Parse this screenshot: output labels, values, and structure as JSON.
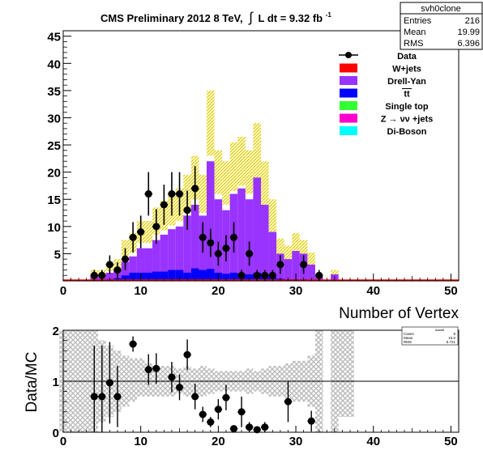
{
  "chart_data": [
    {
      "type": "bar",
      "title": "CMS Preliminary 2012 8 TeV,",
      "title_lumi": "L dt = 9.32 fb",
      "title_lumi_sup": "-1",
      "title_integral": "∫",
      "xlabel": "Number of Vertex",
      "ylabel": "",
      "xlim": [
        0,
        51
      ],
      "ylim": [
        0,
        46
      ],
      "x_ticks": [
        0,
        10,
        20,
        30,
        40,
        50
      ],
      "y_ticks": [
        5,
        10,
        15,
        20,
        25,
        30,
        35,
        40,
        45
      ],
      "stats_box": {
        "name": "svh0clone",
        "rows": [
          {
            "label": "Entries",
            "value": "216"
          },
          {
            "label": "Mean",
            "value": "19.99"
          },
          {
            "label": "RMS",
            "value": "6.396"
          }
        ]
      },
      "legend_position": "top-right",
      "legend": [
        {
          "label": "Data",
          "color": "#000000",
          "style": "marker"
        },
        {
          "label": "W+jets",
          "color": "#ff0000",
          "style": "box"
        },
        {
          "label": "Drell-Yan",
          "color": "#9933ff",
          "style": "box"
        },
        {
          "label": "tt",
          "color": "#0000ff",
          "style": "box",
          "overline": true
        },
        {
          "label": "Single top",
          "color": "#33ff33",
          "style": "box"
        },
        {
          "label": "Z → νν +jets",
          "color": "#ff00cc",
          "style": "box"
        },
        {
          "label": "Di-Boson",
          "color": "#00ffff",
          "style": "box"
        }
      ],
      "bins_x": [
        4,
        5,
        6,
        7,
        8,
        9,
        10,
        11,
        12,
        13,
        14,
        15,
        16,
        17,
        18,
        19,
        20,
        21,
        22,
        23,
        24,
        25,
        26,
        27,
        28,
        29,
        30,
        31,
        32,
        33,
        35
      ],
      "mc_total": [
        1.5,
        1.5,
        2.5,
        3,
        6,
        7,
        9,
        9,
        11,
        12,
        13,
        14,
        16,
        19,
        16,
        29,
        20,
        18,
        21,
        22,
        20,
        24,
        18,
        12,
        6,
        5,
        7,
        6,
        4,
        1,
        1.5
      ],
      "mc_drell_yan": [
        1,
        1,
        1.5,
        2,
        3.5,
        4.5,
        6,
        6,
        7.5,
        8.5,
        9.5,
        10,
        12,
        14,
        12,
        22,
        15,
        13,
        16,
        17,
        15,
        19,
        14,
        9,
        5,
        4,
        5.5,
        5,
        3,
        0.8,
        1.2
      ],
      "mc_ttbar": [
        0,
        0,
        0.3,
        0.5,
        1,
        1.5,
        1.5,
        1.5,
        1.7,
        1.7,
        2,
        2,
        1.5,
        2.3,
        2,
        2.2,
        1.5,
        1.3,
        1.5,
        1.3,
        1.2,
        1.5,
        1.2,
        0.8,
        0.4,
        0.3,
        0.3,
        0.3,
        0.2,
        0.1,
        0
      ],
      "mc_uncert": [
        0.5,
        0.5,
        0.7,
        1,
        1.5,
        1.8,
        2,
        2,
        2.5,
        2.7,
        2.8,
        3,
        3.5,
        4,
        3.5,
        6,
        4,
        4,
        4.5,
        4.5,
        4,
        5,
        4,
        3,
        1.8,
        1.5,
        1.8,
        1.5,
        1.2,
        0.3,
        0.5
      ],
      "data": [
        {
          "x": 4,
          "y": 1,
          "err": 1
        },
        {
          "x": 5,
          "y": 1,
          "err": 1
        },
        {
          "x": 6,
          "y": 3,
          "err": 1.7
        },
        {
          "x": 7,
          "y": 2,
          "err": 1.4
        },
        {
          "x": 8,
          "y": 4,
          "err": 2
        },
        {
          "x": 9,
          "y": 8,
          "err": 2.8
        },
        {
          "x": 10,
          "y": 9,
          "err": 3
        },
        {
          "x": 11,
          "y": 16,
          "err": 4
        },
        {
          "x": 12,
          "y": 10,
          "err": 3.2
        },
        {
          "x": 13,
          "y": 14,
          "err": 3.7
        },
        {
          "x": 14,
          "y": 16,
          "err": 4
        },
        {
          "x": 15,
          "y": 16,
          "err": 4
        },
        {
          "x": 16,
          "y": 13,
          "err": 3.6
        },
        {
          "x": 17,
          "y": 17,
          "err": 4.1
        },
        {
          "x": 18,
          "y": 8,
          "err": 2.8
        },
        {
          "x": 19,
          "y": 7,
          "err": 2.6
        },
        {
          "x": 20,
          "y": 5,
          "err": 2.2
        },
        {
          "x": 21,
          "y": 6,
          "err": 2.4
        },
        {
          "x": 22,
          "y": 8,
          "err": 2.8
        },
        {
          "x": 23,
          "y": 1,
          "err": 1
        },
        {
          "x": 24,
          "y": 5,
          "err": 2.2
        },
        {
          "x": 25,
          "y": 1,
          "err": 1
        },
        {
          "x": 26,
          "y": 1,
          "err": 1
        },
        {
          "x": 27,
          "y": 1,
          "err": 1
        },
        {
          "x": 28,
          "y": 3,
          "err": 1.7
        },
        {
          "x": 31,
          "y": 3,
          "err": 1.7
        },
        {
          "x": 33,
          "y": 1,
          "err": 1
        }
      ]
    },
    {
      "type": "scatter",
      "title": "",
      "xlabel": "",
      "ylabel": "Data/MC",
      "xlim": [
        0,
        51
      ],
      "ylim": [
        0,
        2
      ],
      "x_ticks": [
        0,
        10,
        20,
        30,
        40,
        50
      ],
      "y_ticks": [
        0,
        1,
        2
      ],
      "reference_line": 1,
      "stats_box": {
        "name": "dataM",
        "rows": [
          {
            "label": "Cases",
            "value": "8"
          },
          {
            "label": "Mean",
            "value": "10.0"
          },
          {
            "label": "RMS",
            "value": "5.721"
          }
        ]
      },
      "band_x": [
        0,
        1,
        2,
        3,
        4,
        5,
        6,
        7,
        8,
        9,
        10,
        11,
        12,
        13,
        14,
        15,
        16,
        17,
        18,
        19,
        20,
        21,
        22,
        23,
        24,
        25,
        26,
        27,
        28,
        29,
        30,
        31,
        32,
        33,
        35,
        36,
        37
      ],
      "band_low": [
        0,
        0,
        0,
        0,
        0,
        0.2,
        0.3,
        0.4,
        0.5,
        0.6,
        0.7,
        0.7,
        0.7,
        0.7,
        0.7,
        0.75,
        0.7,
        0.75,
        0.7,
        0.75,
        0.8,
        0.8,
        0.8,
        0.8,
        0.75,
        0.8,
        0.75,
        0.7,
        0.7,
        0.65,
        0.6,
        0.6,
        0.5,
        0,
        0,
        0.3,
        0.3
      ],
      "band_high": [
        2,
        2,
        2,
        2,
        2,
        1.8,
        1.7,
        1.6,
        1.5,
        1.45,
        1.45,
        1.35,
        1.3,
        1.3,
        1.3,
        1.25,
        1.3,
        1.25,
        1.3,
        1.25,
        1.2,
        1.2,
        1.2,
        1.2,
        1.25,
        1.2,
        1.25,
        1.3,
        1.3,
        1.35,
        1.4,
        1.4,
        1.5,
        2,
        2,
        2,
        2
      ],
      "points": [
        {
          "x": 4,
          "y": 0.7,
          "err": 1.0
        },
        {
          "x": 5,
          "y": 0.7,
          "err": 1.0
        },
        {
          "x": 6,
          "y": 0.97,
          "err": 0.8
        },
        {
          "x": 7,
          "y": 0.7,
          "err": 0.6
        },
        {
          "x": 9,
          "y": 1.73,
          "err": 0.15
        },
        {
          "x": 11,
          "y": 1.23,
          "err": 0.3
        },
        {
          "x": 12,
          "y": 1.25,
          "err": 0.3
        },
        {
          "x": 14,
          "y": 1.08,
          "err": 0.3
        },
        {
          "x": 15,
          "y": 0.88,
          "err": 0.25
        },
        {
          "x": 16,
          "y": 1.52,
          "err": 0.3
        },
        {
          "x": 17,
          "y": 0.7,
          "err": 0.25
        },
        {
          "x": 18,
          "y": 0.35,
          "err": 0.15
        },
        {
          "x": 19,
          "y": 0.2,
          "err": 0.1
        },
        {
          "x": 20,
          "y": 0.45,
          "err": 0.2
        },
        {
          "x": 21,
          "y": 0.68,
          "err": 0.25
        },
        {
          "x": 22,
          "y": 0.07,
          "err": 0.07
        },
        {
          "x": 23,
          "y": 0.4,
          "err": 0.3
        },
        {
          "x": 24,
          "y": 0.1,
          "err": 0.1
        },
        {
          "x": 25,
          "y": 0.05,
          "err": 0.05
        },
        {
          "x": 26,
          "y": 0.1,
          "err": 0.1
        },
        {
          "x": 29,
          "y": 0.6,
          "err": 0.4
        },
        {
          "x": 32,
          "y": 0.22,
          "err": 0.2
        }
      ]
    }
  ]
}
